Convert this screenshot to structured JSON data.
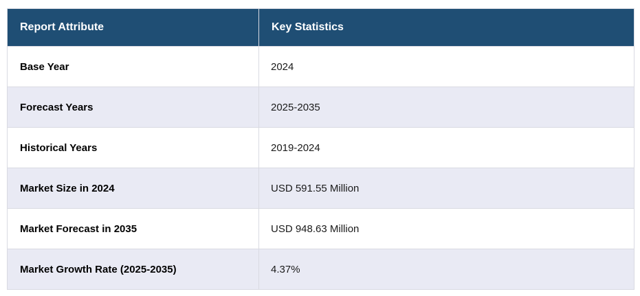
{
  "table": {
    "headers": {
      "attribute": "Report Attribute",
      "statistics": "Key Statistics"
    },
    "rows": [
      {
        "attribute": "Base Year",
        "value": "2024"
      },
      {
        "attribute": "Forecast Years",
        "value": "2025-2035"
      },
      {
        "attribute": "Historical Years",
        "value": "2019-2024"
      },
      {
        "attribute": "Market Size in 2024",
        "value": "USD 591.55 Million"
      },
      {
        "attribute": "Market Forecast in 2035",
        "value": "USD 948.63 Million"
      },
      {
        "attribute": "Market Growth Rate (2025-2035)",
        "value": "4.37%"
      }
    ]
  },
  "colors": {
    "header_background": "#1f4e74",
    "header_text": "#ffffff",
    "row_alternate_background": "#e9eaf4",
    "row_background": "#ffffff",
    "border": "#d9dae2",
    "body_text": "#000000"
  },
  "chart_data": {
    "type": "table",
    "columns": [
      "Report Attribute",
      "Key Statistics"
    ],
    "rows": [
      [
        "Base Year",
        "2024"
      ],
      [
        "Forecast Years",
        "2025-2035"
      ],
      [
        "Historical Years",
        "2019-2024"
      ],
      [
        "Market Size in 2024",
        "USD 591.55 Million"
      ],
      [
        "Market Forecast in 2035",
        "USD 948.63 Million"
      ],
      [
        "Market Growth Rate (2025-2035)",
        "4.37%"
      ]
    ]
  }
}
